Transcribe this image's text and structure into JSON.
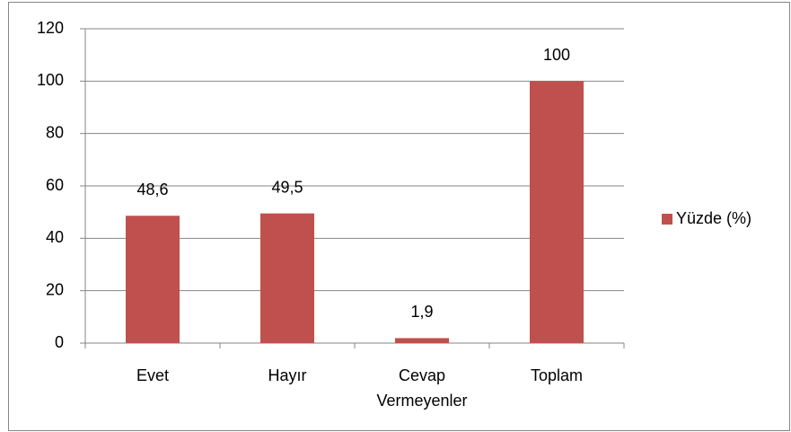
{
  "chart_data": {
    "type": "bar",
    "categories": [
      "Evet",
      "Hayır",
      "Cevap Vermeyenler",
      "Toplam"
    ],
    "series": [
      {
        "name": "Yüzde (%)",
        "color": "#c0504d",
        "values": [
          48.6,
          49.5,
          1.9,
          100
        ],
        "value_labels": [
          "48,6",
          "49,5",
          "1,9",
          "100"
        ]
      }
    ],
    "ylim": [
      0,
      120
    ],
    "yticks": [
      0,
      20,
      40,
      60,
      80,
      100,
      120
    ],
    "grid": true,
    "legend": "right"
  }
}
